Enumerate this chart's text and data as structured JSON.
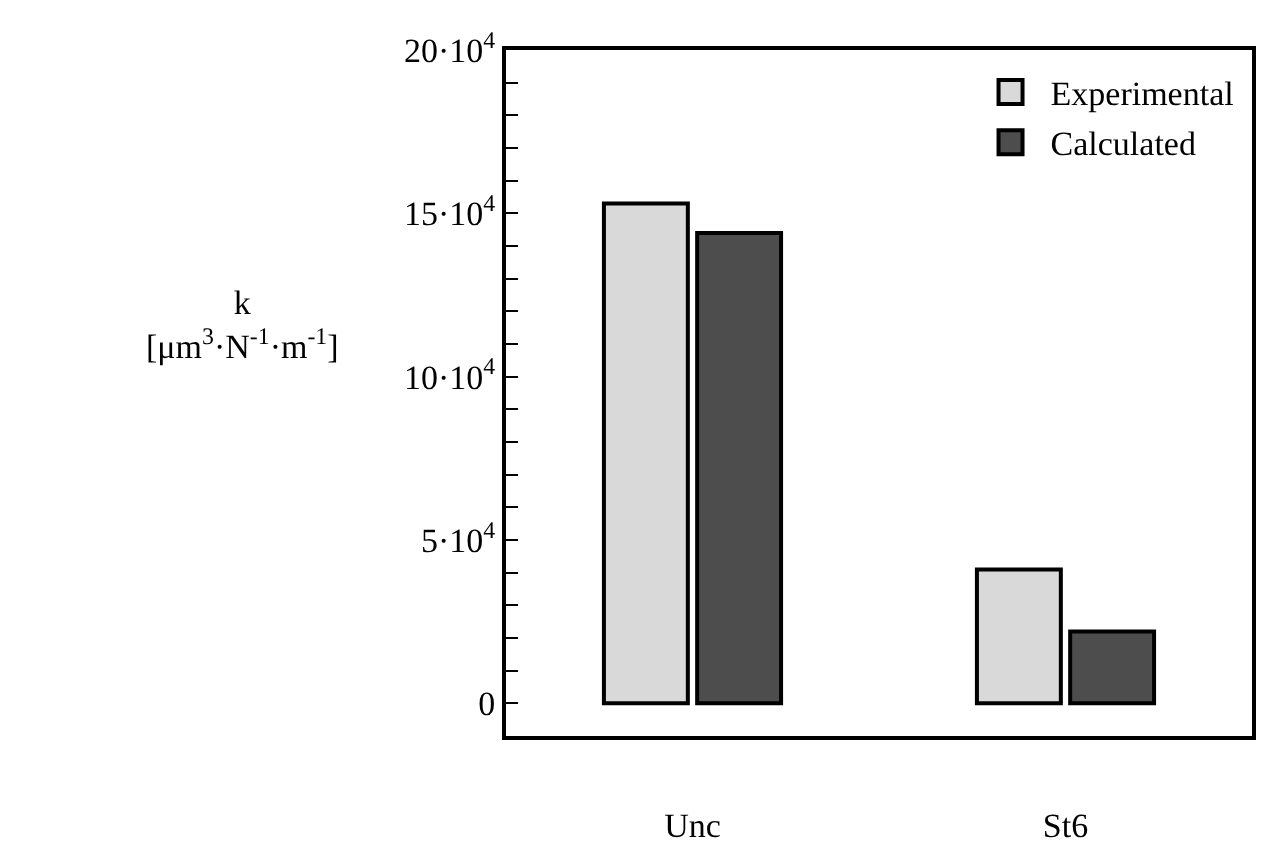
{
  "chart_data": {
    "type": "bar",
    "ylabel": "k\n[μm$^{3}$·N$^{-1}$·m$^{-1}$]",
    "categories": [
      "Unc",
      "St6"
    ],
    "series": [
      {
        "name": "Experimental",
        "color": "#d9d9d9",
        "values": [
          153000,
          41000
        ]
      },
      {
        "name": "Calculated",
        "color": "#4d4d4d",
        "values": [
          144000,
          22000
        ]
      }
    ],
    "ylim": [
      -10000,
      200000
    ],
    "yticks": [
      {
        "value": 0,
        "label": "0"
      },
      {
        "value": 10000,
        "label": null
      },
      {
        "value": 20000,
        "label": null
      },
      {
        "value": 30000,
        "label": null
      },
      {
        "value": 40000,
        "label": null
      },
      {
        "value": 50000,
        "label": "5·10$^{4}$"
      },
      {
        "value": 60000,
        "label": null
      },
      {
        "value": 70000,
        "label": null
      },
      {
        "value": 80000,
        "label": null
      },
      {
        "value": 90000,
        "label": null
      },
      {
        "value": 100000,
        "label": "10·10$^{4}$"
      },
      {
        "value": 110000,
        "label": null
      },
      {
        "value": 120000,
        "label": null
      },
      {
        "value": 130000,
        "label": null
      },
      {
        "value": 140000,
        "label": null
      },
      {
        "value": 150000,
        "label": "15·10$^{4}$"
      },
      {
        "value": 160000,
        "label": null
      },
      {
        "value": 170000,
        "label": null
      },
      {
        "value": 180000,
        "label": null
      },
      {
        "value": 190000,
        "label": null
      },
      {
        "value": 200000,
        "label": "20·10$^{4}$"
      }
    ],
    "legend": "top right"
  }
}
